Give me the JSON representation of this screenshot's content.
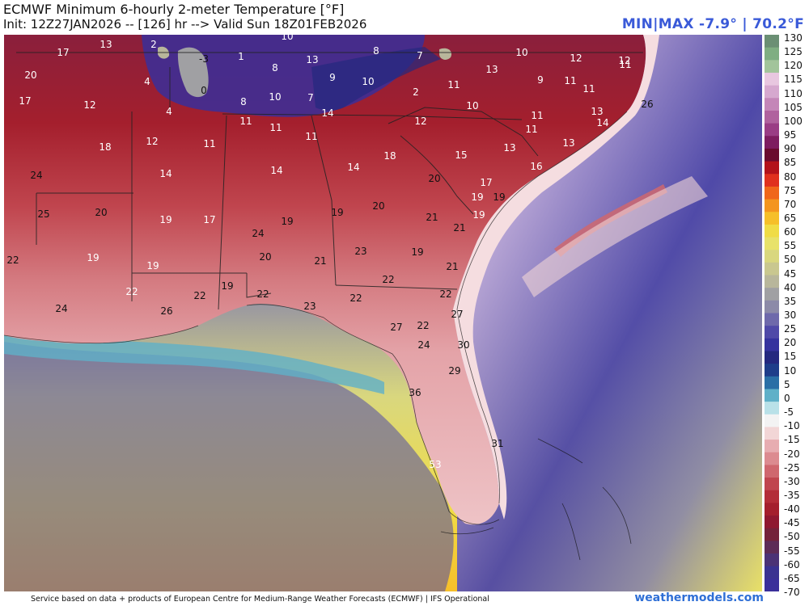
{
  "header": {
    "title": "ECMWF Minimum 6-hourly 2-meter Temperature [°F]",
    "subtitle": "Init: 12Z27JAN2026 -- [126] hr --> Valid Sun 18Z01FEB2026",
    "minmax": "MIN|MAX -7.9° | 70.2°F"
  },
  "footer": {
    "credit": "Service based on data + products of European Centre for Medium-Range Weather Forecasts (ECMWF) | IFS Operational",
    "brand": "weathermodels.com"
  },
  "colorbar": {
    "ticks": [
      "130",
      "125",
      "120",
      "115",
      "110",
      "105",
      "100",
      "95",
      "90",
      "85",
      "80",
      "75",
      "70",
      "65",
      "60",
      "55",
      "50",
      "45",
      "40",
      "35",
      "30",
      "25",
      "20",
      "15",
      "10",
      "5",
      "0",
      "-5",
      "-10",
      "-15",
      "-20",
      "-25",
      "-30",
      "-35",
      "-40",
      "-45",
      "-50",
      "-55",
      "-60",
      "-65",
      "-70"
    ],
    "colors": [
      "#6b8f74",
      "#7fae82",
      "#a2c49b",
      "#e8c7e0",
      "#d6a8cf",
      "#c486b8",
      "#b0629e",
      "#9a3d85",
      "#7e1d60",
      "#6a0b2e",
      "#b3121b",
      "#e0301e",
      "#f0661a",
      "#f4951f",
      "#f6bf2a",
      "#f0dc46",
      "#e8e26a",
      "#d9d77e",
      "#c9c78f",
      "#b8b69b",
      "#a0a0a3",
      "#8c8aa8",
      "#6e69ab",
      "#4f49a8",
      "#35329e",
      "#24287f",
      "#1e3d8a",
      "#2a6fa6",
      "#5fb0c8",
      "#b9e1e8",
      "#f3f3f3",
      "#f2d6d6",
      "#e7adb1",
      "#dc8b90",
      "#cf676e",
      "#c0454e",
      "#b32d38",
      "#a41f2d",
      "#8f1830",
      "#74223a",
      "#5d2b57",
      "#4b3276",
      "#3a3291",
      "#3a2f9a"
    ]
  },
  "map": {
    "labels": [
      {
        "t": "13",
        "c": "w"
      },
      {
        "t": "2",
        "c": "w"
      },
      {
        "t": "10",
        "c": "w"
      },
      {
        "t": "13",
        "c": "w"
      },
      {
        "t": "17",
        "c": "w"
      },
      {
        "t": "-3",
        "c": "k"
      },
      {
        "t": "1",
        "c": "w"
      },
      {
        "t": "8",
        "c": "w"
      },
      {
        "t": "7",
        "c": "w"
      },
      {
        "t": "10",
        "c": "w"
      },
      {
        "t": "12",
        "c": "w"
      },
      {
        "t": "11",
        "c": "w"
      },
      {
        "t": "20",
        "c": "w"
      },
      {
        "t": "4",
        "c": "w"
      },
      {
        "t": "8",
        "c": "w"
      },
      {
        "t": "13",
        "c": "w"
      },
      {
        "t": "9",
        "c": "w"
      },
      {
        "t": "10",
        "c": "w"
      },
      {
        "t": "11",
        "c": "w"
      },
      {
        "t": "9",
        "c": "w"
      },
      {
        "t": "11",
        "c": "w"
      },
      {
        "t": "11",
        "c": "w"
      },
      {
        "t": "12",
        "c": "w"
      },
      {
        "t": "0",
        "c": "k"
      },
      {
        "t": "17",
        "c": "w"
      },
      {
        "t": "12",
        "c": "w"
      },
      {
        "t": "8",
        "c": "w"
      },
      {
        "t": "10",
        "c": "w"
      },
      {
        "t": "7",
        "c": "w"
      },
      {
        "t": "2",
        "c": "w"
      },
      {
        "t": "10",
        "c": "w"
      },
      {
        "t": "11",
        "c": "w"
      },
      {
        "t": "13",
        "c": "w"
      },
      {
        "t": "26",
        "c": "k"
      },
      {
        "t": "4",
        "c": "w"
      },
      {
        "t": "14",
        "c": "w"
      },
      {
        "t": "11",
        "c": "w"
      },
      {
        "t": "11",
        "c": "w"
      },
      {
        "t": "12",
        "c": "w"
      },
      {
        "t": "11",
        "c": "w"
      },
      {
        "t": "14",
        "c": "w"
      },
      {
        "t": "12",
        "c": "w"
      },
      {
        "t": "11",
        "c": "w"
      },
      {
        "t": "11",
        "c": "w"
      },
      {
        "t": "15",
        "c": "w"
      },
      {
        "t": "13",
        "c": "w"
      },
      {
        "t": "13",
        "c": "w"
      },
      {
        "t": "18",
        "c": "w"
      },
      {
        "t": "18",
        "c": "w"
      },
      {
        "t": "16",
        "c": "w"
      },
      {
        "t": "14",
        "c": "w"
      },
      {
        "t": "14",
        "c": "w"
      },
      {
        "t": "14",
        "c": "w"
      },
      {
        "t": "17",
        "c": "w"
      },
      {
        "t": "24",
        "c": "k"
      },
      {
        "t": "20",
        "c": "k"
      },
      {
        "t": "19",
        "c": "w"
      },
      {
        "t": "19",
        "c": "k"
      },
      {
        "t": "25",
        "c": "k"
      },
      {
        "t": "20",
        "c": "k"
      },
      {
        "t": "19",
        "c": "w"
      },
      {
        "t": "17",
        "c": "w"
      },
      {
        "t": "19",
        "c": "k"
      },
      {
        "t": "19",
        "c": "k"
      },
      {
        "t": "20",
        "c": "k"
      },
      {
        "t": "21",
        "c": "k"
      },
      {
        "t": "19",
        "c": "w"
      },
      {
        "t": "24",
        "c": "k"
      },
      {
        "t": "22",
        "c": "k"
      },
      {
        "t": "19",
        "c": "w"
      },
      {
        "t": "21",
        "c": "k"
      },
      {
        "t": "19",
        "c": "w"
      },
      {
        "t": "20",
        "c": "k"
      },
      {
        "t": "21",
        "c": "k"
      },
      {
        "t": "23",
        "c": "k"
      },
      {
        "t": "19",
        "c": "k"
      },
      {
        "t": "21",
        "c": "k"
      },
      {
        "t": "22",
        "c": "k"
      },
      {
        "t": "22",
        "c": "k"
      },
      {
        "t": "22",
        "c": "w"
      },
      {
        "t": "19",
        "c": "k"
      },
      {
        "t": "26",
        "c": "k"
      },
      {
        "t": "24",
        "c": "k"
      },
      {
        "t": "23",
        "c": "k"
      },
      {
        "t": "22",
        "c": "k"
      },
      {
        "t": "27",
        "c": "k"
      },
      {
        "t": "22",
        "c": "k"
      },
      {
        "t": "22",
        "c": "k"
      },
      {
        "t": "27",
        "c": "k"
      },
      {
        "t": "22",
        "c": "k"
      },
      {
        "t": "24",
        "c": "k"
      },
      {
        "t": "30",
        "c": "k"
      },
      {
        "t": "29",
        "c": "k"
      },
      {
        "t": "36",
        "c": "k"
      },
      {
        "t": "31",
        "c": "k"
      },
      {
        "t": "53",
        "c": "w"
      }
    ]
  }
}
